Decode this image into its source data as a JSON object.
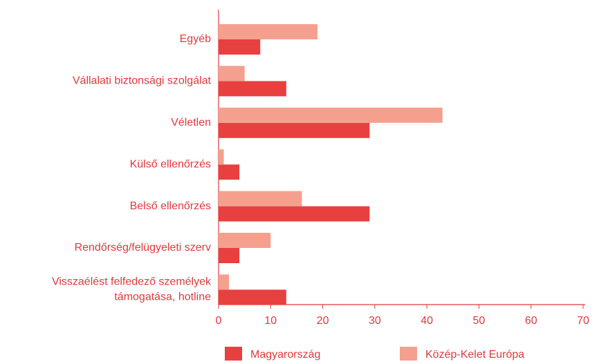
{
  "chart_data": {
    "type": "barh",
    "categories": [
      "Egyéb",
      "Vállalati biztonsági szolgálat",
      "Véletlen",
      "Külső ellenőrzés",
      "Belső ellenőrzés",
      "Rendőrség/felügyeleti szerv",
      "Visszaélést felfedező személyek\ntámogatása, hotline"
    ],
    "series": [
      {
        "name": "Magyarország",
        "color": "#e8403f",
        "values": [
          8,
          13,
          29,
          4,
          29,
          4,
          13
        ]
      },
      {
        "name": "Közép-Kelet Európa",
        "color": "#f5a08f",
        "values": [
          19,
          5,
          43,
          1,
          16,
          10,
          2
        ]
      }
    ],
    "xlim": [
      0,
      70
    ],
    "xticks": [
      0,
      10,
      20,
      30,
      40,
      50,
      60,
      70
    ]
  }
}
